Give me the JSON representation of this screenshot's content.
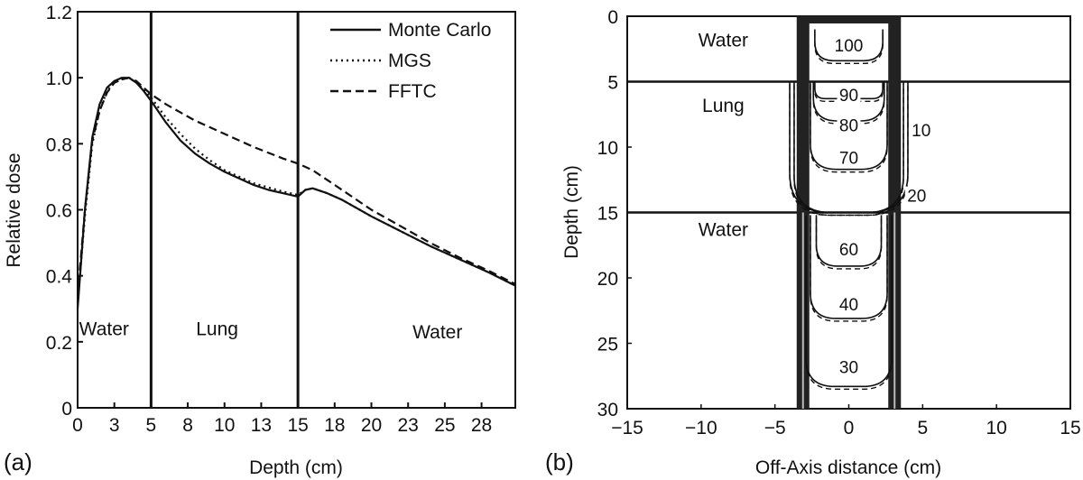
{
  "chart_data": [
    {
      "type": "line",
      "panel_label": "(a)",
      "xlabel": "Depth (cm)",
      "ylabel": "Relative dose",
      "xlim": [
        0,
        29.8
      ],
      "ylim": [
        0,
        1.2
      ],
      "x_ticks": [
        0,
        2.5,
        5,
        7.5,
        10,
        12.5,
        15,
        17.5,
        20,
        22.5,
        25,
        27.5
      ],
      "x_tick_labels": [
        "0",
        "3",
        "5",
        "8",
        "10",
        "13",
        "15",
        "18",
        "20",
        "23",
        "25",
        "28"
      ],
      "y_ticks": [
        0,
        0.2,
        0.4,
        0.6,
        0.8,
        1.0,
        1.2
      ],
      "y_tick_labels": [
        "0",
        "0.2",
        "0.4",
        "0.6",
        "0.8",
        "1.0",
        "1.2"
      ],
      "grid": false,
      "legend_position": "top-right",
      "interfaces": [
        5,
        15
      ],
      "regions": [
        {
          "label": "Water",
          "x": 1.8,
          "y": 0.22
        },
        {
          "label": "Lung",
          "x": 9.5,
          "y": 0.22
        },
        {
          "label": "Water",
          "x": 24.5,
          "y": 0.21
        }
      ],
      "series": [
        {
          "name": "Monte Carlo",
          "style": "solid",
          "x": [
            0,
            0.5,
            1,
            1.5,
            2,
            2.5,
            3,
            3.5,
            4,
            4.5,
            5,
            6,
            7,
            8,
            9,
            10,
            11,
            12,
            13,
            14,
            15,
            15.5,
            16,
            17,
            18,
            20,
            22,
            24,
            26,
            28,
            29.8
          ],
          "y": [
            0.3,
            0.6,
            0.82,
            0.92,
            0.97,
            0.99,
            1.0,
            1.0,
            0.985,
            0.96,
            0.93,
            0.865,
            0.81,
            0.77,
            0.74,
            0.715,
            0.695,
            0.675,
            0.66,
            0.65,
            0.64,
            0.66,
            0.665,
            0.65,
            0.63,
            0.58,
            0.535,
            0.49,
            0.45,
            0.41,
            0.37
          ]
        },
        {
          "name": "MGS",
          "style": "dotted",
          "x": [
            0,
            0.5,
            1,
            1.5,
            2,
            2.5,
            3,
            3.5,
            4,
            4.5,
            5,
            6,
            7,
            8,
            9,
            10,
            12,
            14,
            15,
            15.5,
            16,
            17,
            18,
            20,
            22,
            24,
            26,
            28,
            29.8
          ],
          "y": [
            0.32,
            0.58,
            0.8,
            0.9,
            0.96,
            0.985,
            0.995,
            1.0,
            0.985,
            0.965,
            0.94,
            0.88,
            0.83,
            0.785,
            0.75,
            0.72,
            0.68,
            0.655,
            0.645,
            0.66,
            0.665,
            0.65,
            0.63,
            0.58,
            0.535,
            0.49,
            0.45,
            0.41,
            0.37
          ]
        },
        {
          "name": "FFTC",
          "style": "dashed",
          "x": [
            0,
            0.5,
            1,
            1.5,
            2,
            2.5,
            3,
            3.5,
            4,
            4.5,
            5,
            6,
            7,
            8,
            9,
            10,
            12,
            14,
            15,
            16,
            18,
            20,
            22,
            24,
            26,
            28,
            29.8
          ],
          "y": [
            0.34,
            0.6,
            0.81,
            0.9,
            0.955,
            0.985,
            0.995,
            1.0,
            0.99,
            0.97,
            0.95,
            0.92,
            0.895,
            0.87,
            0.85,
            0.83,
            0.79,
            0.755,
            0.74,
            0.72,
            0.66,
            0.6,
            0.55,
            0.5,
            0.455,
            0.415,
            0.375
          ]
        }
      ]
    },
    {
      "type": "contour",
      "panel_label": "(b)",
      "xlabel": "Off-Axis distance (cm)",
      "ylabel": "Depth (cm)",
      "xlim": [
        -15,
        15
      ],
      "ylim": [
        0,
        30
      ],
      "y_inverted": true,
      "x_ticks": [
        -15,
        -10,
        -5,
        0,
        5,
        10,
        15
      ],
      "x_tick_labels": [
        "−15",
        "−10",
        "−5",
        "0",
        "5",
        "10",
        "15"
      ],
      "y_ticks": [
        0,
        5,
        10,
        15,
        20,
        25,
        30
      ],
      "y_tick_labels": [
        "0",
        "5",
        "10",
        "15",
        "20",
        "25",
        "30"
      ],
      "grid": false,
      "interfaces": [
        5,
        15
      ],
      "regions": [
        {
          "label": "Water",
          "x": -8.5,
          "y": 2.3
        },
        {
          "label": "Lung",
          "x": -8.5,
          "y": 7.3
        },
        {
          "label": "Water",
          "x": -8.5,
          "y": 16.8
        }
      ],
      "beam_edges": [
        -3.1,
        3.1
      ],
      "contours": [
        {
          "level": "100",
          "half_width": 2.3,
          "depth": [
            1.0,
            3.4
          ],
          "label_at": [
            0,
            2.2
          ]
        },
        {
          "level": "90",
          "half_width": 2.3,
          "depth": [
            5,
            6.3
          ],
          "label_at": [
            0,
            6.0
          ]
        },
        {
          "level": "80",
          "half_width": 2.4,
          "depth": [
            5,
            8.0
          ],
          "label_at": [
            0,
            8.3
          ]
        },
        {
          "level": "70",
          "half_width": 2.6,
          "depth": [
            5,
            11.7
          ],
          "label_at": [
            0,
            10.8
          ]
        },
        {
          "level": "10",
          "half_width": 4.0,
          "depth": [
            5,
            15
          ],
          "label_at": [
            4.9,
            8.7
          ]
        },
        {
          "level": "20",
          "half_width": 3.7,
          "depth": [
            5,
            15
          ],
          "label_at": [
            4.6,
            13.7
          ]
        },
        {
          "level": "60",
          "half_width": 2.2,
          "depth": [
            15.2,
            19.1
          ],
          "label_at": [
            0,
            17.8
          ]
        },
        {
          "level": "40",
          "half_width": 2.6,
          "depth": [
            15.2,
            23.1
          ],
          "label_at": [
            0,
            22.0
          ]
        },
        {
          "level": "30",
          "half_width": 2.9,
          "depth": [
            15.2,
            28.3
          ],
          "label_at": [
            0,
            26.8
          ]
        }
      ]
    }
  ]
}
